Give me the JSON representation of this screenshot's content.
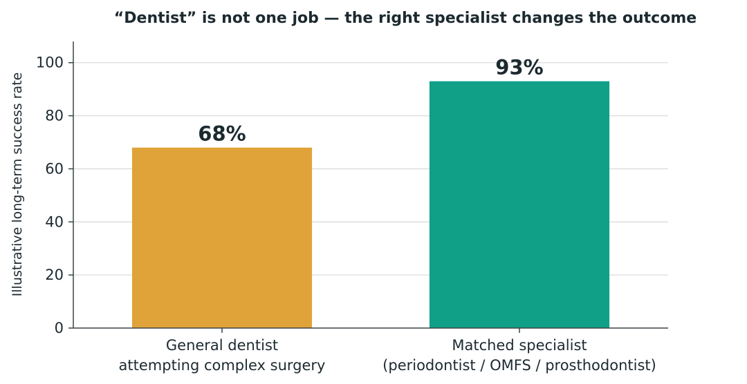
{
  "chart_data": {
    "type": "bar",
    "title": "“Dentist” is not one job — the right specialist changes the outcome",
    "ylabel": "Illustrative long-term success rate",
    "ylim": [
      0,
      108
    ],
    "yticks": [
      0,
      20,
      40,
      60,
      80,
      100
    ],
    "grid": true,
    "categories": [
      [
        "General dentist",
        "attempting complex surgery"
      ],
      [
        "Matched specialist",
        "(periodontist / OMFS / prosthodontist)"
      ]
    ],
    "values": [
      68,
      93
    ],
    "data_labels": [
      "68%",
      "93%"
    ],
    "colors": [
      "#e0a33a",
      "#0fa087"
    ]
  }
}
